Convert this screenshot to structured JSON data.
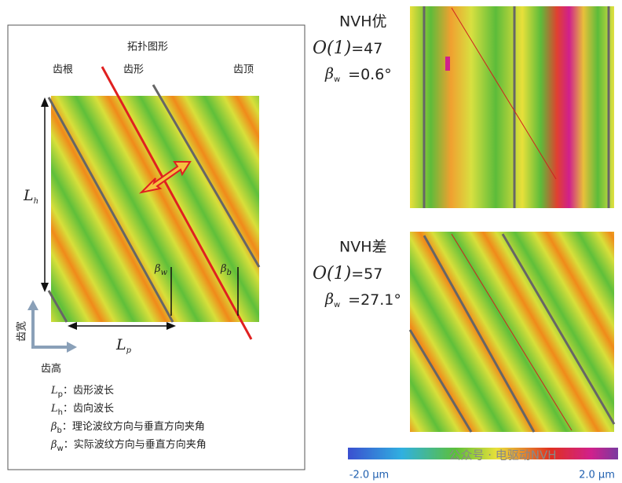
{
  "left_panel": {
    "title": "拓扑图形",
    "top_labels": [
      "齿根",
      "齿形",
      "齿顶"
    ],
    "lh": {
      "symbol": "L",
      "sub": "h"
    },
    "lp": {
      "symbol": "L",
      "sub": "p"
    },
    "bw": {
      "symbol": "β",
      "sub": "w"
    },
    "bb": {
      "symbol": "β",
      "sub": "b"
    },
    "axis_width": "齿宽",
    "axis_height": "齿高",
    "legend": [
      {
        "symbol": "L",
        "sub": "p",
        "text": "：齿形波长"
      },
      {
        "symbol": "L",
        "sub": "h",
        "text": "：齿向波长"
      },
      {
        "symbol": "β",
        "sub": "b",
        "text": "：理论波纹方向与垂直方向夹角"
      },
      {
        "symbol": "β",
        "sub": "w",
        "text": "：实际波纹方向与垂直方向夹角"
      }
    ]
  },
  "right_panels": [
    {
      "title": "NVH优",
      "order_symbol": "O(1)",
      "order_value": "=47",
      "angle_symbol": "β",
      "angle_sub": "w",
      "angle_value": "=0.6°"
    },
    {
      "title": "NVH差",
      "order_symbol": "O(1)",
      "order_value": "=57",
      "angle_symbol": "β",
      "angle_sub": "w",
      "angle_value": "=27.1°"
    }
  ],
  "colorbar": {
    "min_label": "-2.0 μm",
    "max_label": "2.0 μm"
  },
  "watermark": "公众号 · 电驱动NVH"
}
